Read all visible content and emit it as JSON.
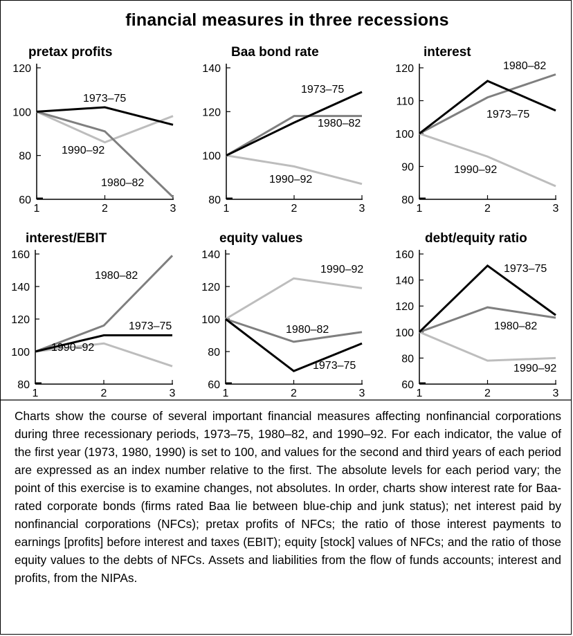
{
  "figure": {
    "title": "financial measures in three recessions",
    "caption": "Charts show the course of several important financial measures affecting nonfinancial corporations during three recessionary periods, 1973–75, 1980–82, and 1990–92. For each indicator, the value of the first year (1973, 1980, 1990) is set to 100, and values for the second and third years of each period are expressed as an index number relative to the first. The absolute levels for each period vary; the point of this exercise is to examine changes, not absolutes. In order, charts show interest rate for Baa-rated corporate bonds (firms rated Baa lie between blue-chip and junk status); net interest paid by nonfinancial corporations (NFCs); pretax profits of NFCs; the ratio of those interest payments to earnings [profits] before interest and taxes (EBIT); equity [stock] values of NFCs; and the ratio of those equity values to the debts of NFCs. Assets and liabilities from the flow of funds accounts; interest and profits, from the NIPAs."
  },
  "colors": {
    "1973-75": "#000000",
    "1980-82": "#7f7f7f",
    "1990-92": "#bdbdbd"
  },
  "chart_data": [
    {
      "type": "line",
      "title": "pretax profits",
      "x": [
        1,
        2,
        3
      ],
      "ylim": [
        60,
        120
      ],
      "yticks": [
        60,
        80,
        100,
        120
      ],
      "series": [
        {
          "name": "1973–75",
          "values": [
            100,
            102,
            94
          ]
        },
        {
          "name": "1980–82",
          "values": [
            100,
            91,
            61
          ]
        },
        {
          "name": "1990–92",
          "values": [
            100,
            86,
            98
          ]
        }
      ]
    },
    {
      "type": "line",
      "title": "Baa bond rate",
      "x": [
        1,
        2,
        3
      ],
      "ylim": [
        80,
        140
      ],
      "yticks": [
        80,
        100,
        120,
        140
      ],
      "series": [
        {
          "name": "1973–75",
          "values": [
            100,
            115,
            129
          ]
        },
        {
          "name": "1980–82",
          "values": [
            100,
            118,
            118
          ]
        },
        {
          "name": "1990–92",
          "values": [
            100,
            95,
            87
          ]
        }
      ]
    },
    {
      "type": "line",
      "title": "interest",
      "x": [
        1,
        2,
        3
      ],
      "ylim": [
        80,
        120
      ],
      "yticks": [
        80,
        90,
        100,
        110,
        120
      ],
      "series": [
        {
          "name": "1973–75",
          "values": [
            100,
            116,
            107
          ]
        },
        {
          "name": "1980–82",
          "values": [
            100,
            111,
            118
          ]
        },
        {
          "name": "1990–92",
          "values": [
            100,
            93,
            84
          ]
        }
      ]
    },
    {
      "type": "line",
      "title": "interest/EBIT",
      "x": [
        1,
        2,
        3
      ],
      "ylim": [
        80,
        160
      ],
      "yticks": [
        80,
        100,
        120,
        140,
        160
      ],
      "series": [
        {
          "name": "1973–75",
          "values": [
            100,
            110,
            110
          ]
        },
        {
          "name": "1980–82",
          "values": [
            100,
            116,
            159
          ]
        },
        {
          "name": "1990–92",
          "values": [
            100,
            105,
            91
          ]
        }
      ]
    },
    {
      "type": "line",
      "title": "equity values",
      "x": [
        1,
        2,
        3
      ],
      "ylim": [
        60,
        140
      ],
      "yticks": [
        60,
        80,
        100,
        120,
        140
      ],
      "series": [
        {
          "name": "1973–75",
          "values": [
            100,
            68,
            85
          ]
        },
        {
          "name": "1980–82",
          "values": [
            100,
            86,
            92
          ]
        },
        {
          "name": "1990–92",
          "values": [
            100,
            125,
            119
          ]
        }
      ]
    },
    {
      "type": "line",
      "title": "debt/equity ratio",
      "x": [
        1,
        2,
        3
      ],
      "ylim": [
        60,
        160
      ],
      "yticks": [
        60,
        80,
        100,
        120,
        140,
        160
      ],
      "series": [
        {
          "name": "1973–75",
          "values": [
            100,
            151,
            113
          ]
        },
        {
          "name": "1980–82",
          "values": [
            100,
            119,
            111
          ]
        },
        {
          "name": "1990–92",
          "values": [
            100,
            78,
            80
          ]
        }
      ]
    }
  ]
}
